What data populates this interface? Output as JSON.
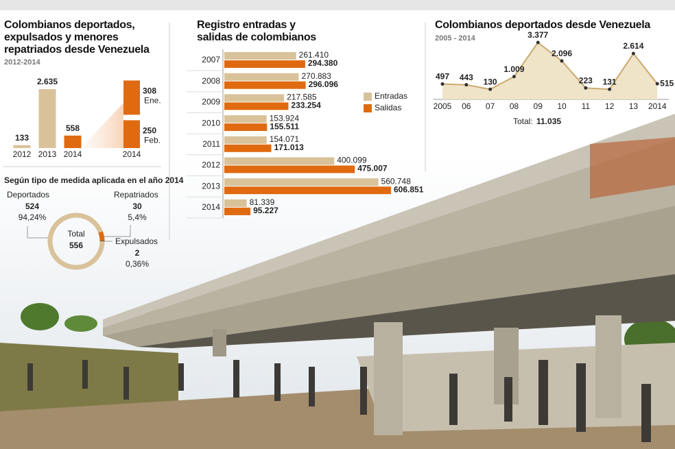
{
  "chart_data": [
    {
      "type": "bar",
      "title": "Colombianos deportados, expulsados y menores repatriados desde Venezuela",
      "subtitle": "2012-2014",
      "categories": [
        "2012",
        "2013",
        "2014"
      ],
      "values": [
        133,
        2635,
        558
      ],
      "value_labels": [
        "133",
        "2.635",
        "558"
      ],
      "colors": [
        "#d9c29a",
        "#d9c29a",
        "#e06a10"
      ]
    },
    {
      "type": "stacked_bar",
      "categories": [
        "2014"
      ],
      "series": [
        {
          "name": "Feb.",
          "color": "#e06a10",
          "values": [
            250
          ]
        },
        {
          "name": "Ene.",
          "color": "#e06a10",
          "values": [
            308
          ]
        }
      ]
    },
    {
      "type": "donut",
      "title": "Según tipo de medida aplicada en el año 2014",
      "categories": [
        "Deportados",
        "Repatriados",
        "Expulsados"
      ],
      "values": [
        524,
        30,
        2
      ],
      "percentages": [
        94.24,
        5.4,
        0.36
      ],
      "percentage_labels": [
        "94,24%",
        "5,4%",
        "0,36%"
      ],
      "colors": [
        "#d9c29a",
        "#e06a10",
        "#5a4630"
      ],
      "total_label": "Total",
      "total": 556
    },
    {
      "type": "hbar",
      "title": "Registro entradas y salidas de colombianos",
      "categories": [
        "2007",
        "2008",
        "2009",
        "2010",
        "2011",
        "2012",
        "2013",
        "2014"
      ],
      "series": [
        {
          "name": "Entradas",
          "color": "#d9c29a",
          "values": [
            261410,
            270883,
            217585,
            153924,
            154071,
            400099,
            560748,
            81339
          ],
          "value_labels": [
            "261.410",
            "270.883",
            "217.585",
            "153.924",
            "154.071",
            "400.099",
            "560.748",
            "81.339"
          ]
        },
        {
          "name": "Salidas",
          "color": "#e06a10",
          "values": [
            294380,
            296096,
            233254,
            155511,
            171013,
            475007,
            606851,
            95227
          ],
          "value_labels": [
            "294.380",
            "296.096",
            "233.254",
            "155.511",
            "171.013",
            "475.007",
            "606.851",
            "95.227"
          ]
        }
      ]
    },
    {
      "type": "area",
      "title": "Colombianos deportados desde Venezuela",
      "subtitle": "2005 - 2014",
      "categories": [
        "2005",
        "06",
        "07",
        "08",
        "09",
        "10",
        "11",
        "12",
        "13",
        "2014"
      ],
      "values": [
        497,
        443,
        130,
        1009,
        3377,
        2096,
        223,
        131,
        2614,
        515
      ],
      "value_labels": [
        "497",
        "443",
        "130",
        "1.009",
        "3.377",
        "2.096",
        "223",
        "131",
        "2.614",
        "515"
      ],
      "color": "#c9a96b",
      "fill": "#efe3c8",
      "total_label": "Total:",
      "total": {
        "value": 11035,
        "label": "11.035"
      }
    }
  ]
}
